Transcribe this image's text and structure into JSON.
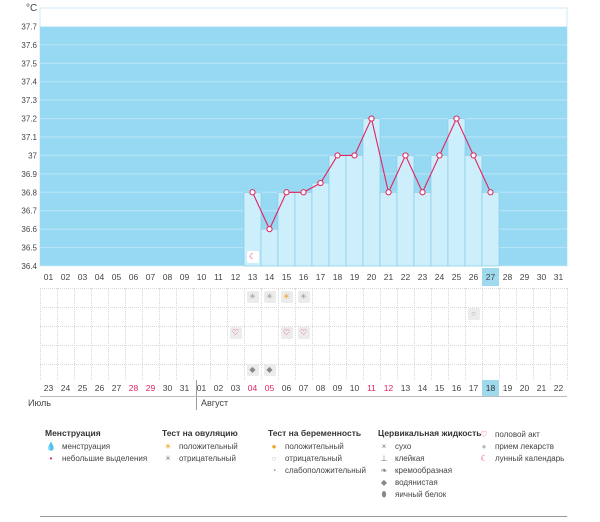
{
  "chart_data": {
    "type": "bar",
    "ylabel": "°C",
    "ylim": [
      36.4,
      37.8
    ],
    "yticks": [
      "36.4",
      "36.5",
      "36.6",
      "36.7",
      "36.8",
      "36.9",
      "37",
      "37.1",
      "37.2",
      "37.3",
      "37.4",
      "37.5",
      "37.6",
      "37.7"
    ],
    "yticks_v": [
      36.4,
      36.5,
      36.6,
      36.7,
      36.8,
      36.9,
      37.0,
      37.1,
      37.2,
      37.3,
      37.4,
      37.5,
      37.6,
      37.7
    ],
    "coverline": 37.7,
    "cycle_days": [
      "01",
      "02",
      "03",
      "04",
      "05",
      "06",
      "07",
      "08",
      "09",
      "10",
      "11",
      "12",
      "13",
      "14",
      "15",
      "16",
      "17",
      "18",
      "19",
      "20",
      "21",
      "22",
      "23",
      "24",
      "25",
      "26",
      "27",
      "28",
      "29",
      "30",
      "31"
    ],
    "series": [
      {
        "values": [
          null,
          null,
          null,
          null,
          null,
          null,
          null,
          null,
          null,
          null,
          null,
          null,
          36.8,
          36.6,
          36.8,
          36.8,
          36.85,
          37.0,
          37.0,
          37.2,
          36.8,
          37.0,
          36.8,
          37.0,
          37.2,
          37.0,
          36.8,
          null,
          null,
          null,
          null
        ]
      }
    ],
    "current_day": "27"
  },
  "calendar": {
    "dates": [
      "23",
      "24",
      "25",
      "26",
      "27",
      "28",
      "29",
      "30",
      "31",
      "01",
      "02",
      "03",
      "04",
      "05",
      "06",
      "07",
      "08",
      "09",
      "10",
      "11",
      "12",
      "13",
      "14",
      "15",
      "16",
      "17",
      "18",
      "19",
      "20",
      "21",
      "22"
    ],
    "weekend_indices": [
      5,
      6,
      12,
      13,
      19,
      20,
      26
    ],
    "today_index": 26,
    "month_july": "Июль",
    "month_august": "Август"
  },
  "colors": {
    "fertile_bg": "#97d9f3",
    "bar_fill": "#cdeefb",
    "bar_stroke": "#7ec8e8",
    "line": "#e0245e",
    "weekend_text": "#e0245e",
    "today_bg": "#9fd9ee"
  },
  "markers": {
    "lunar": [
      13
    ],
    "ovulation_test": [
      [
        "negative",
        13
      ],
      [
        "negative",
        14
      ],
      [
        "positive",
        15
      ],
      [
        "negative",
        16
      ]
    ],
    "intercourse": [
      12,
      15,
      16
    ],
    "pregnancy_test": [
      26
    ],
    "egg_white": [
      13,
      14
    ]
  },
  "legend": {
    "menstruation": {
      "title": "Менструация",
      "items": [
        {
          "icon": "menstruation-drop-icon",
          "label": "менструация"
        },
        {
          "icon": "spotting-drop-icon",
          "label": "небольшие выделения"
        }
      ]
    },
    "ovulation": {
      "title": "Тест на овуляцию",
      "items": [
        {
          "icon": "sun-positive-icon",
          "label": "положительный"
        },
        {
          "icon": "sun-negative-icon",
          "label": "отрицательный"
        }
      ]
    },
    "pregnancy": {
      "title": "Тест на беременность",
      "items": [
        {
          "icon": "pregnancy-positive-icon",
          "label": "положительный"
        },
        {
          "icon": "pregnancy-negative-icon",
          "label": "отрицательный"
        },
        {
          "icon": "pregnancy-weak-icon",
          "label": "слабоположительный"
        }
      ]
    },
    "cervical": {
      "title": "Цервикальная жидкость",
      "items": [
        {
          "icon": "dry-icon",
          "label": "сухо"
        },
        {
          "icon": "sticky-icon",
          "label": "клейкая"
        },
        {
          "icon": "creamy-icon",
          "label": "кремообразная"
        },
        {
          "icon": "watery-icon",
          "label": "водянистая"
        },
        {
          "icon": "egg-white-icon",
          "label": "яичный белок"
        }
      ]
    },
    "other": {
      "items": [
        {
          "icon": "heart-icon",
          "label": "половой акт"
        },
        {
          "icon": "pill-icon",
          "label": "прием лекарств"
        },
        {
          "icon": "moon-icon",
          "label": "лунный календарь"
        }
      ]
    }
  }
}
